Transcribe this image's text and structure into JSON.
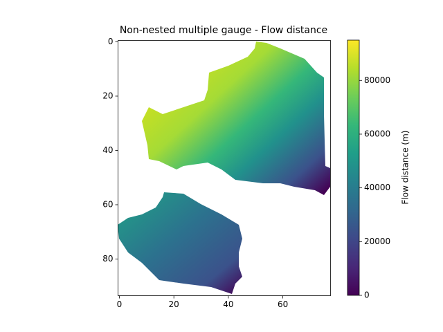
{
  "chart_data": {
    "type": "image",
    "title": "Non-nested multiple gauge - Flow distance",
    "xlim": [
      -0.5,
      77.5
    ],
    "xticks": [
      0,
      20,
      40,
      60
    ],
    "ylim": [
      93.5,
      -0.5
    ],
    "yticks": [
      0,
      20,
      40,
      60,
      80
    ],
    "cmap": "viridis",
    "clim": [
      0,
      95000
    ],
    "cticks": [
      0,
      20000,
      40000,
      60000,
      80000
    ],
    "colorbar_label": "Flow distance (m)"
  }
}
